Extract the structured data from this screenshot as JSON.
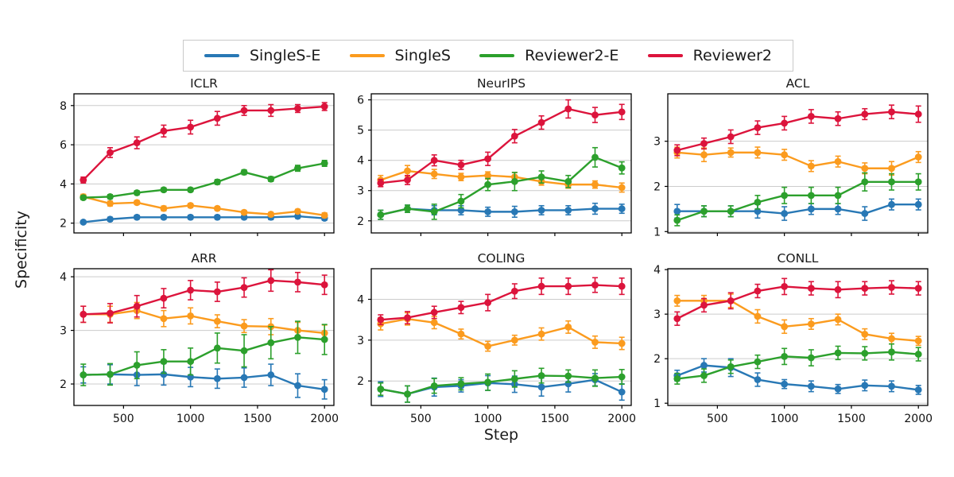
{
  "figure": {
    "background": "#ffffff",
    "grid_color": "#cccccc",
    "axis_color": "#000000"
  },
  "axis_labels": {
    "y": "Specificity",
    "x": "Step"
  },
  "legend": {
    "items": [
      {
        "label": "SingleS-E",
        "color": "#2878b5"
      },
      {
        "label": "SingleS",
        "color": "#fb9b1e"
      },
      {
        "label": "Reviewer2-E",
        "color": "#2ca02c"
      },
      {
        "label": "Reviewer2",
        "color": "#dc143c"
      }
    ]
  },
  "chart_data": [
    {
      "type": "line",
      "title": "ICLR",
      "x": [
        200,
        400,
        600,
        800,
        1000,
        1200,
        1400,
        1600,
        1800,
        2000
      ],
      "xticks": [
        500,
        1000,
        1500,
        2000
      ],
      "xlim": [
        130,
        2070
      ],
      "ylim": [
        1.5,
        8.6
      ],
      "yticks": [
        2,
        4,
        6,
        8
      ],
      "grid": "horizontal",
      "series": [
        {
          "name": "SingleS-E",
          "color": "#2878b5",
          "values": [
            2.05,
            2.2,
            2.3,
            2.3,
            2.3,
            2.3,
            2.3,
            2.3,
            2.35,
            2.25
          ],
          "err": [
            0.08,
            0.1,
            0.1,
            0.1,
            0.1,
            0.1,
            0.1,
            0.12,
            0.1,
            0.1
          ]
        },
        {
          "name": "SingleS",
          "color": "#fb9b1e",
          "values": [
            3.35,
            3.0,
            3.05,
            2.75,
            2.9,
            2.75,
            2.55,
            2.45,
            2.6,
            2.4
          ],
          "err": [
            0.12,
            0.12,
            0.1,
            0.12,
            0.1,
            0.1,
            0.1,
            0.1,
            0.1,
            0.12
          ]
        },
        {
          "name": "Reviewer2-E",
          "color": "#2ca02c",
          "values": [
            3.3,
            3.35,
            3.55,
            3.7,
            3.7,
            4.1,
            4.6,
            4.25,
            4.8,
            5.05
          ],
          "err": [
            0.1,
            0.1,
            0.1,
            0.1,
            0.1,
            0.12,
            0.12,
            0.12,
            0.15,
            0.15
          ]
        },
        {
          "name": "Reviewer2",
          "color": "#dc143c",
          "values": [
            4.2,
            5.6,
            6.1,
            6.7,
            6.9,
            7.35,
            7.75,
            7.75,
            7.85,
            7.95
          ],
          "err": [
            0.15,
            0.25,
            0.3,
            0.3,
            0.35,
            0.35,
            0.25,
            0.3,
            0.2,
            0.2
          ]
        }
      ]
    },
    {
      "type": "line",
      "title": "NeurIPS",
      "x": [
        200,
        400,
        600,
        800,
        1000,
        1200,
        1400,
        1600,
        1800,
        2000
      ],
      "xticks": [
        500,
        1000,
        1500,
        2000
      ],
      "xlim": [
        130,
        2070
      ],
      "ylim": [
        1.6,
        6.2
      ],
      "yticks": [
        2,
        3,
        4,
        5,
        6
      ],
      "grid": "horizontal",
      "series": [
        {
          "name": "SingleS-E",
          "color": "#2878b5",
          "values": [
            2.2,
            2.4,
            2.35,
            2.35,
            2.3,
            2.3,
            2.35,
            2.35,
            2.4,
            2.4
          ],
          "err": [
            0.15,
            0.12,
            0.15,
            0.15,
            0.15,
            0.18,
            0.15,
            0.15,
            0.18,
            0.15
          ]
        },
        {
          "name": "SingleS",
          "color": "#fb9b1e",
          "values": [
            3.35,
            3.65,
            3.55,
            3.45,
            3.5,
            3.45,
            3.3,
            3.2,
            3.2,
            3.1
          ],
          "err": [
            0.15,
            0.18,
            0.15,
            0.12,
            0.12,
            0.15,
            0.12,
            0.12,
            0.12,
            0.15
          ]
        },
        {
          "name": "Reviewer2-E",
          "color": "#2ca02c",
          "values": [
            2.2,
            2.4,
            2.3,
            2.65,
            3.2,
            3.3,
            3.45,
            3.3,
            4.1,
            3.75
          ],
          "err": [
            0.15,
            0.12,
            0.25,
            0.22,
            0.2,
            0.3,
            0.2,
            0.2,
            0.32,
            0.2
          ]
        },
        {
          "name": "Reviewer2",
          "color": "#dc143c",
          "values": [
            3.25,
            3.35,
            4.0,
            3.85,
            4.05,
            4.8,
            5.25,
            5.7,
            5.5,
            5.6
          ],
          "err": [
            0.12,
            0.15,
            0.18,
            0.15,
            0.22,
            0.22,
            0.22,
            0.3,
            0.25,
            0.25
          ]
        }
      ]
    },
    {
      "type": "line",
      "title": "ACL",
      "x": [
        200,
        400,
        600,
        800,
        1000,
        1200,
        1400,
        1600,
        1800,
        2000
      ],
      "xticks": [
        500,
        1000,
        1500,
        2000
      ],
      "xlim": [
        130,
        2070
      ],
      "ylim": [
        0.97,
        4.05
      ],
      "yticks": [
        1,
        2,
        3
      ],
      "grid": "horizontal",
      "series": [
        {
          "name": "SingleS-E",
          "color": "#2878b5",
          "values": [
            1.45,
            1.45,
            1.45,
            1.45,
            1.4,
            1.5,
            1.5,
            1.4,
            1.6,
            1.6
          ],
          "err": [
            0.15,
            0.12,
            0.12,
            0.15,
            0.15,
            0.12,
            0.12,
            0.15,
            0.12,
            0.12
          ]
        },
        {
          "name": "SingleS",
          "color": "#fb9b1e",
          "values": [
            2.75,
            2.7,
            2.75,
            2.75,
            2.7,
            2.45,
            2.55,
            2.4,
            2.4,
            2.65
          ],
          "err": [
            0.12,
            0.15,
            0.1,
            0.12,
            0.12,
            0.12,
            0.12,
            0.12,
            0.15,
            0.12
          ]
        },
        {
          "name": "Reviewer2-E",
          "color": "#2ca02c",
          "values": [
            1.25,
            1.45,
            1.45,
            1.65,
            1.8,
            1.8,
            1.8,
            2.1,
            2.1,
            2.1
          ],
          "err": [
            0.12,
            0.12,
            0.12,
            0.15,
            0.18,
            0.18,
            0.18,
            0.2,
            0.18,
            0.18
          ]
        },
        {
          "name": "Reviewer2",
          "color": "#dc143c",
          "values": [
            2.8,
            2.95,
            3.1,
            3.3,
            3.4,
            3.55,
            3.5,
            3.6,
            3.65,
            3.6
          ],
          "err": [
            0.12,
            0.12,
            0.15,
            0.15,
            0.15,
            0.15,
            0.15,
            0.12,
            0.15,
            0.18
          ]
        }
      ]
    },
    {
      "type": "line",
      "title": "ARR",
      "x": [
        200,
        400,
        600,
        800,
        1000,
        1200,
        1400,
        1600,
        1800,
        2000
      ],
      "xticks": [
        500,
        1000,
        1500,
        2000
      ],
      "xlim": [
        130,
        2070
      ],
      "ylim": [
        1.6,
        4.15
      ],
      "yticks": [
        2,
        3,
        4
      ],
      "grid": "horizontal",
      "series": [
        {
          "name": "SingleS-E",
          "color": "#2878b5",
          "values": [
            2.17,
            2.18,
            2.17,
            2.18,
            2.13,
            2.1,
            2.12,
            2.17,
            1.97,
            1.9
          ],
          "err": [
            0.15,
            0.18,
            0.2,
            0.2,
            0.18,
            0.18,
            0.18,
            0.2,
            0.22,
            0.18
          ]
        },
        {
          "name": "SingleS",
          "color": "#fb9b1e",
          "values": [
            3.3,
            3.3,
            3.37,
            3.22,
            3.27,
            3.17,
            3.08,
            3.07,
            3.0,
            2.95
          ],
          "err": [
            0.15,
            0.15,
            0.15,
            0.15,
            0.15,
            0.12,
            0.12,
            0.15,
            0.15,
            0.15
          ]
        },
        {
          "name": "Reviewer2-E",
          "color": "#2ca02c",
          "values": [
            2.17,
            2.18,
            2.35,
            2.42,
            2.42,
            2.67,
            2.62,
            2.77,
            2.87,
            2.83
          ],
          "err": [
            0.2,
            0.2,
            0.25,
            0.22,
            0.25,
            0.28,
            0.3,
            0.3,
            0.3,
            0.28
          ]
        },
        {
          "name": "Reviewer2",
          "color": "#dc143c",
          "values": [
            3.3,
            3.32,
            3.45,
            3.6,
            3.75,
            3.72,
            3.8,
            3.93,
            3.9,
            3.85
          ],
          "err": [
            0.15,
            0.18,
            0.2,
            0.18,
            0.18,
            0.18,
            0.18,
            0.2,
            0.18,
            0.18
          ]
        }
      ]
    },
    {
      "type": "line",
      "title": "COLING",
      "x": [
        200,
        400,
        600,
        800,
        1000,
        1200,
        1400,
        1600,
        1800,
        2000
      ],
      "xticks": [
        500,
        1000,
        1500,
        2000
      ],
      "xlim": [
        130,
        2070
      ],
      "ylim": [
        1.4,
        4.75
      ],
      "yticks": [
        2,
        3,
        4
      ],
      "grid": "horizontal",
      "series": [
        {
          "name": "SingleS-E",
          "color": "#2878b5",
          "values": [
            1.8,
            1.68,
            1.85,
            1.88,
            1.95,
            1.92,
            1.85,
            1.93,
            2.03,
            1.73
          ],
          "err": [
            0.18,
            0.2,
            0.22,
            0.15,
            0.18,
            0.2,
            0.22,
            0.2,
            0.15,
            0.2
          ]
        },
        {
          "name": "SingleS",
          "color": "#fb9b1e",
          "values": [
            3.4,
            3.52,
            3.43,
            3.15,
            2.85,
            3.0,
            3.15,
            3.32,
            2.95,
            2.92
          ],
          "err": [
            0.15,
            0.15,
            0.15,
            0.12,
            0.12,
            0.12,
            0.15,
            0.15,
            0.15,
            0.15
          ]
        },
        {
          "name": "Reviewer2-E",
          "color": "#2ca02c",
          "values": [
            1.8,
            1.68,
            1.88,
            1.93,
            1.97,
            2.05,
            2.13,
            2.12,
            2.07,
            2.1
          ],
          "err": [
            0.15,
            0.2,
            0.18,
            0.15,
            0.2,
            0.2,
            0.18,
            0.15,
            0.2,
            0.18
          ]
        },
        {
          "name": "Reviewer2",
          "color": "#dc143c",
          "values": [
            3.5,
            3.55,
            3.68,
            3.8,
            3.92,
            4.2,
            4.32,
            4.32,
            4.35,
            4.32
          ],
          "err": [
            0.12,
            0.15,
            0.15,
            0.15,
            0.2,
            0.18,
            0.2,
            0.2,
            0.18,
            0.2
          ]
        }
      ]
    },
    {
      "type": "line",
      "title": "CONLL",
      "x": [
        200,
        400,
        600,
        800,
        1000,
        1200,
        1400,
        1600,
        1800,
        2000
      ],
      "xticks": [
        500,
        1000,
        1500,
        2000
      ],
      "xlim": [
        130,
        2070
      ],
      "ylim": [
        0.95,
        4.02
      ],
      "yticks": [
        1,
        2,
        3,
        4
      ],
      "grid": "horizontal",
      "series": [
        {
          "name": "SingleS-E",
          "color": "#2878b5",
          "values": [
            1.62,
            1.85,
            1.8,
            1.53,
            1.43,
            1.38,
            1.32,
            1.4,
            1.38,
            1.3
          ],
          "err": [
            0.12,
            0.15,
            0.2,
            0.15,
            0.1,
            0.12,
            0.1,
            0.12,
            0.12,
            0.1
          ]
        },
        {
          "name": "SingleS",
          "color": "#fb9b1e",
          "values": [
            3.3,
            3.3,
            3.3,
            2.95,
            2.72,
            2.78,
            2.88,
            2.55,
            2.45,
            2.4
          ],
          "err": [
            0.12,
            0.12,
            0.15,
            0.15,
            0.15,
            0.12,
            0.12,
            0.12,
            0.12,
            0.1
          ]
        },
        {
          "name": "Reviewer2-E",
          "color": "#2ca02c",
          "values": [
            1.55,
            1.62,
            1.82,
            1.93,
            2.05,
            2.02,
            2.13,
            2.12,
            2.15,
            2.1
          ],
          "err": [
            0.12,
            0.15,
            0.15,
            0.15,
            0.18,
            0.18,
            0.15,
            0.15,
            0.18,
            0.15
          ]
        },
        {
          "name": "Reviewer2",
          "color": "#dc143c",
          "values": [
            2.9,
            3.2,
            3.3,
            3.52,
            3.62,
            3.58,
            3.55,
            3.58,
            3.6,
            3.58
          ],
          "err": [
            0.15,
            0.15,
            0.18,
            0.15,
            0.18,
            0.15,
            0.18,
            0.15,
            0.15,
            0.15
          ]
        }
      ]
    }
  ]
}
